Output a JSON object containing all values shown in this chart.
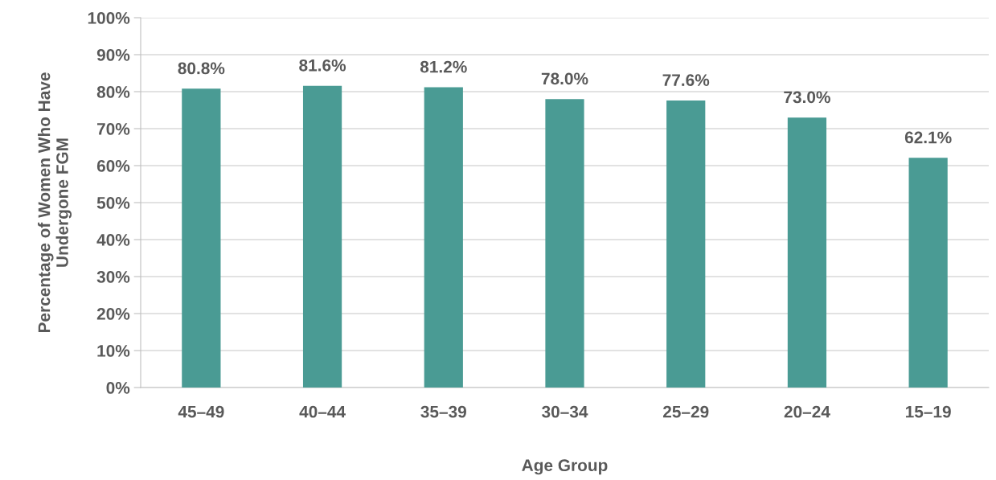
{
  "chart_data": {
    "type": "bar",
    "xlabel": "Age Group",
    "ylabel": "Percentage of Women Who Have\nUndergone FGM",
    "categories": [
      "45–49",
      "40–44",
      "35–39",
      "30–34",
      "25–29",
      "20–24",
      "15–19"
    ],
    "values": [
      80.8,
      81.6,
      81.2,
      78.0,
      77.6,
      73.0,
      62.1
    ],
    "value_labels": [
      "80.8%",
      "81.6%",
      "81.2%",
      "78.0%",
      "77.6%",
      "73.0%",
      "62.1%"
    ],
    "color": "#4a9b94",
    "ylim": [
      0,
      100
    ],
    "yticks": [
      {
        "value": 0,
        "label": "0%"
      },
      {
        "value": 10,
        "label": "10%"
      },
      {
        "value": 20,
        "label": "20%"
      },
      {
        "value": 30,
        "label": "30%"
      },
      {
        "value": 40,
        "label": "40%"
      },
      {
        "value": 50,
        "label": "50%"
      },
      {
        "value": 60,
        "label": "60%"
      },
      {
        "value": 70,
        "label": "70%"
      },
      {
        "value": 80,
        "label": "80%"
      },
      {
        "value": 90,
        "label": "90%"
      },
      {
        "value": 100,
        "label": "100%"
      }
    ],
    "grid": "y"
  }
}
